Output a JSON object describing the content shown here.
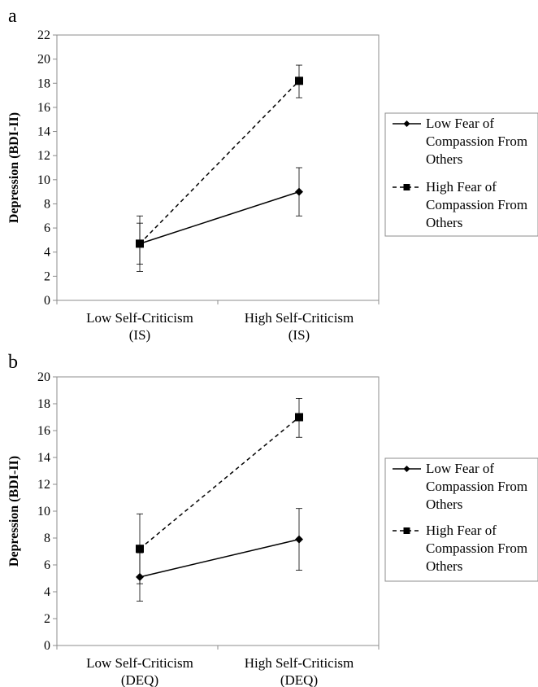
{
  "chart_data": [
    {
      "panel_label": "a",
      "type": "line",
      "categories": [
        "Low Self-Criticism\n(IS)",
        "High Self-Criticism\n(IS)"
      ],
      "ylabel": "Depression (BDI-II)",
      "ylim": [
        0,
        22
      ],
      "ytick_step": 2,
      "legend_position": "right",
      "grid": false,
      "series": [
        {
          "name": "Low Fear of\nCompassion From\nOthers",
          "marker": "diamond",
          "dash": "solid",
          "values": [
            4.7,
            9.0
          ],
          "error_low": [
            3.0,
            7.0
          ],
          "error_high": [
            6.4,
            11.0
          ]
        },
        {
          "name": "High Fear of\nCompassion From\nOthers",
          "marker": "square",
          "dash": "dashed",
          "values": [
            4.7,
            18.2
          ],
          "error_low": [
            2.4,
            16.8
          ],
          "error_high": [
            7.0,
            19.5
          ]
        }
      ]
    },
    {
      "panel_label": "b",
      "type": "line",
      "categories": [
        "Low Self-Criticism\n(DEQ)",
        "High Self-Criticism\n(DEQ)"
      ],
      "ylabel": "Depression (BDI-II)",
      "ylim": [
        0,
        20
      ],
      "ytick_step": 2,
      "legend_position": "right",
      "grid": false,
      "series": [
        {
          "name": "Low Fear of\nCompassion From\nOthers",
          "marker": "diamond",
          "dash": "solid",
          "values": [
            5.1,
            7.9
          ],
          "error_low": [
            3.3,
            5.6
          ],
          "error_high": [
            6.9,
            10.2
          ]
        },
        {
          "name": "High Fear of\nCompassion From\nOthers",
          "marker": "square",
          "dash": "dashed",
          "values": [
            7.2,
            17.0
          ],
          "error_low": [
            4.6,
            15.5
          ],
          "error_high": [
            9.8,
            18.4
          ]
        }
      ]
    }
  ]
}
